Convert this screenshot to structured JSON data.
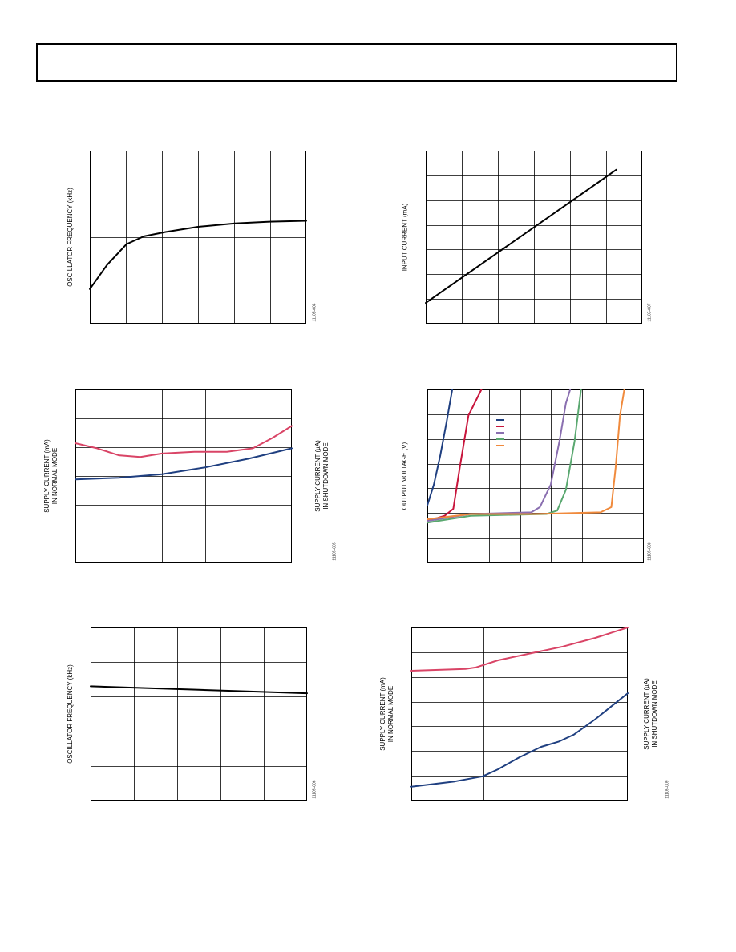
{
  "page": {
    "header_text": ""
  },
  "charts": [
    {
      "id": "osc-vs-left-top",
      "ylabel": "OSCILLATOR FREQUENCY (kHz)",
      "ylabel_right": "",
      "fig_id": "11105-004",
      "grid": {
        "cols": 6,
        "rows": 2
      },
      "series": [
        {
          "color": "#000000",
          "points": [
            [
              0,
              0.2
            ],
            [
              0.08,
              0.34
            ],
            [
              0.17,
              0.46
            ],
            [
              0.25,
              0.505
            ],
            [
              0.35,
              0.53
            ],
            [
              0.5,
              0.56
            ],
            [
              0.67,
              0.58
            ],
            [
              0.83,
              0.59
            ],
            [
              1,
              0.595
            ]
          ]
        }
      ],
      "legend": []
    },
    {
      "id": "input-current",
      "ylabel": "INPUT CURRENT (mA)",
      "ylabel_right": "",
      "fig_id": "11105-007",
      "grid": {
        "cols": 6,
        "rows": 7
      },
      "series": [
        {
          "color": "#000000",
          "points": [
            [
              0,
              0.12
            ],
            [
              0.88,
              0.89
            ]
          ]
        }
      ],
      "legend": []
    },
    {
      "id": "supply-current-mid",
      "ylabel": "SUPPLY CURRENT (mA)\nIN NORMAL MODE",
      "ylabel_right": "SUPPLY CURRENT (µA)\nIN SHUTDOWN MODE",
      "fig_id": "11105-005",
      "grid": {
        "cols": 5,
        "rows": 6
      },
      "series": [
        {
          "color": "#d94466",
          "points": [
            [
              0,
              0.69
            ],
            [
              0.1,
              0.66
            ],
            [
              0.2,
              0.62
            ],
            [
              0.3,
              0.61
            ],
            [
              0.4,
              0.63
            ],
            [
              0.55,
              0.64
            ],
            [
              0.7,
              0.64
            ],
            [
              0.82,
              0.66
            ],
            [
              0.91,
              0.72
            ],
            [
              1,
              0.79
            ]
          ]
        },
        {
          "color": "#1f3f80",
          "points": [
            [
              0,
              0.48
            ],
            [
              0.2,
              0.49
            ],
            [
              0.4,
              0.51
            ],
            [
              0.6,
              0.55
            ],
            [
              0.8,
              0.6
            ],
            [
              1,
              0.66
            ]
          ]
        }
      ],
      "legend": []
    },
    {
      "id": "output-voltage",
      "ylabel": "OUTPUT VOLTAGE (V)",
      "ylabel_right": "",
      "fig_id": "11105-008",
      "grid": {
        "cols": 7,
        "rows": 7
      },
      "series": [
        {
          "color": "#1f3f80",
          "points": [
            [
              0,
              0.33
            ],
            [
              0.03,
              0.45
            ],
            [
              0.06,
              0.62
            ],
            [
              0.09,
              0.82
            ],
            [
              0.115,
              1.0
            ]
          ]
        },
        {
          "color": "#c8153c",
          "points": [
            [
              0,
              0.24
            ],
            [
              0.08,
              0.27
            ],
            [
              0.12,
              0.31
            ],
            [
              0.15,
              0.55
            ],
            [
              0.19,
              0.85
            ],
            [
              0.25,
              1.0
            ]
          ]
        },
        {
          "color": "#8a6fb0",
          "points": [
            [
              0,
              0.24
            ],
            [
              0.2,
              0.28
            ],
            [
              0.48,
              0.29
            ],
            [
              0.52,
              0.32
            ],
            [
              0.57,
              0.45
            ],
            [
              0.61,
              0.7
            ],
            [
              0.64,
              0.92
            ],
            [
              0.66,
              1.0
            ]
          ]
        },
        {
          "color": "#5aa870",
          "points": [
            [
              0,
              0.23
            ],
            [
              0.2,
              0.27
            ],
            [
              0.55,
              0.28
            ],
            [
              0.6,
              0.3
            ],
            [
              0.64,
              0.42
            ],
            [
              0.68,
              0.7
            ],
            [
              0.71,
              1.0
            ]
          ]
        },
        {
          "color": "#f08a3c",
          "points": [
            [
              0,
              0.25
            ],
            [
              0.2,
              0.28
            ],
            [
              0.5,
              0.28
            ],
            [
              0.8,
              0.29
            ],
            [
              0.85,
              0.32
            ],
            [
              0.87,
              0.55
            ],
            [
              0.89,
              0.85
            ],
            [
              0.91,
              1.0
            ]
          ]
        }
      ],
      "legend": [
        {
          "color": "#1f3f80",
          "label": ""
        },
        {
          "color": "#c8153c",
          "label": ""
        },
        {
          "color": "#8a6fb0",
          "label": ""
        },
        {
          "color": "#5aa870",
          "label": ""
        },
        {
          "color": "#f08a3c",
          "label": ""
        }
      ]
    },
    {
      "id": "osc-vs-left-bottom",
      "ylabel": "OSCILLATOR FREQUENCY (kHz)",
      "ylabel_right": "",
      "fig_id": "11105-006",
      "grid": {
        "cols": 5,
        "rows": 5
      },
      "series": [
        {
          "color": "#000000",
          "points": [
            [
              0,
              0.66
            ],
            [
              0.5,
              0.64
            ],
            [
              1,
              0.62
            ]
          ]
        }
      ],
      "legend": []
    },
    {
      "id": "supply-current-bottom",
      "ylabel": "SUPPLY CURRENT (mA)\nIN NORMAL MODE",
      "ylabel_right": "SUPPLY CURRENT (µA)\nIN SHUTDOWN MODE",
      "fig_id": "11105-009",
      "grid": {
        "cols": 3,
        "rows": 7
      },
      "series": [
        {
          "color": "#d94466",
          "points": [
            [
              0,
              0.75
            ],
            [
              0.25,
              0.76
            ],
            [
              0.3,
              0.77
            ],
            [
              0.4,
              0.81
            ],
            [
              0.55,
              0.85
            ],
            [
              0.7,
              0.89
            ],
            [
              0.85,
              0.94
            ],
            [
              1,
              1.0
            ]
          ]
        },
        {
          "color": "#1f3f80",
          "points": [
            [
              0,
              0.08
            ],
            [
              0.2,
              0.11
            ],
            [
              0.33,
              0.14
            ],
            [
              0.4,
              0.18
            ],
            [
              0.5,
              0.25
            ],
            [
              0.6,
              0.31
            ],
            [
              0.68,
              0.34
            ],
            [
              0.75,
              0.38
            ],
            [
              0.85,
              0.47
            ],
            [
              0.93,
              0.55
            ],
            [
              1,
              0.62
            ]
          ]
        }
      ],
      "legend": []
    }
  ]
}
